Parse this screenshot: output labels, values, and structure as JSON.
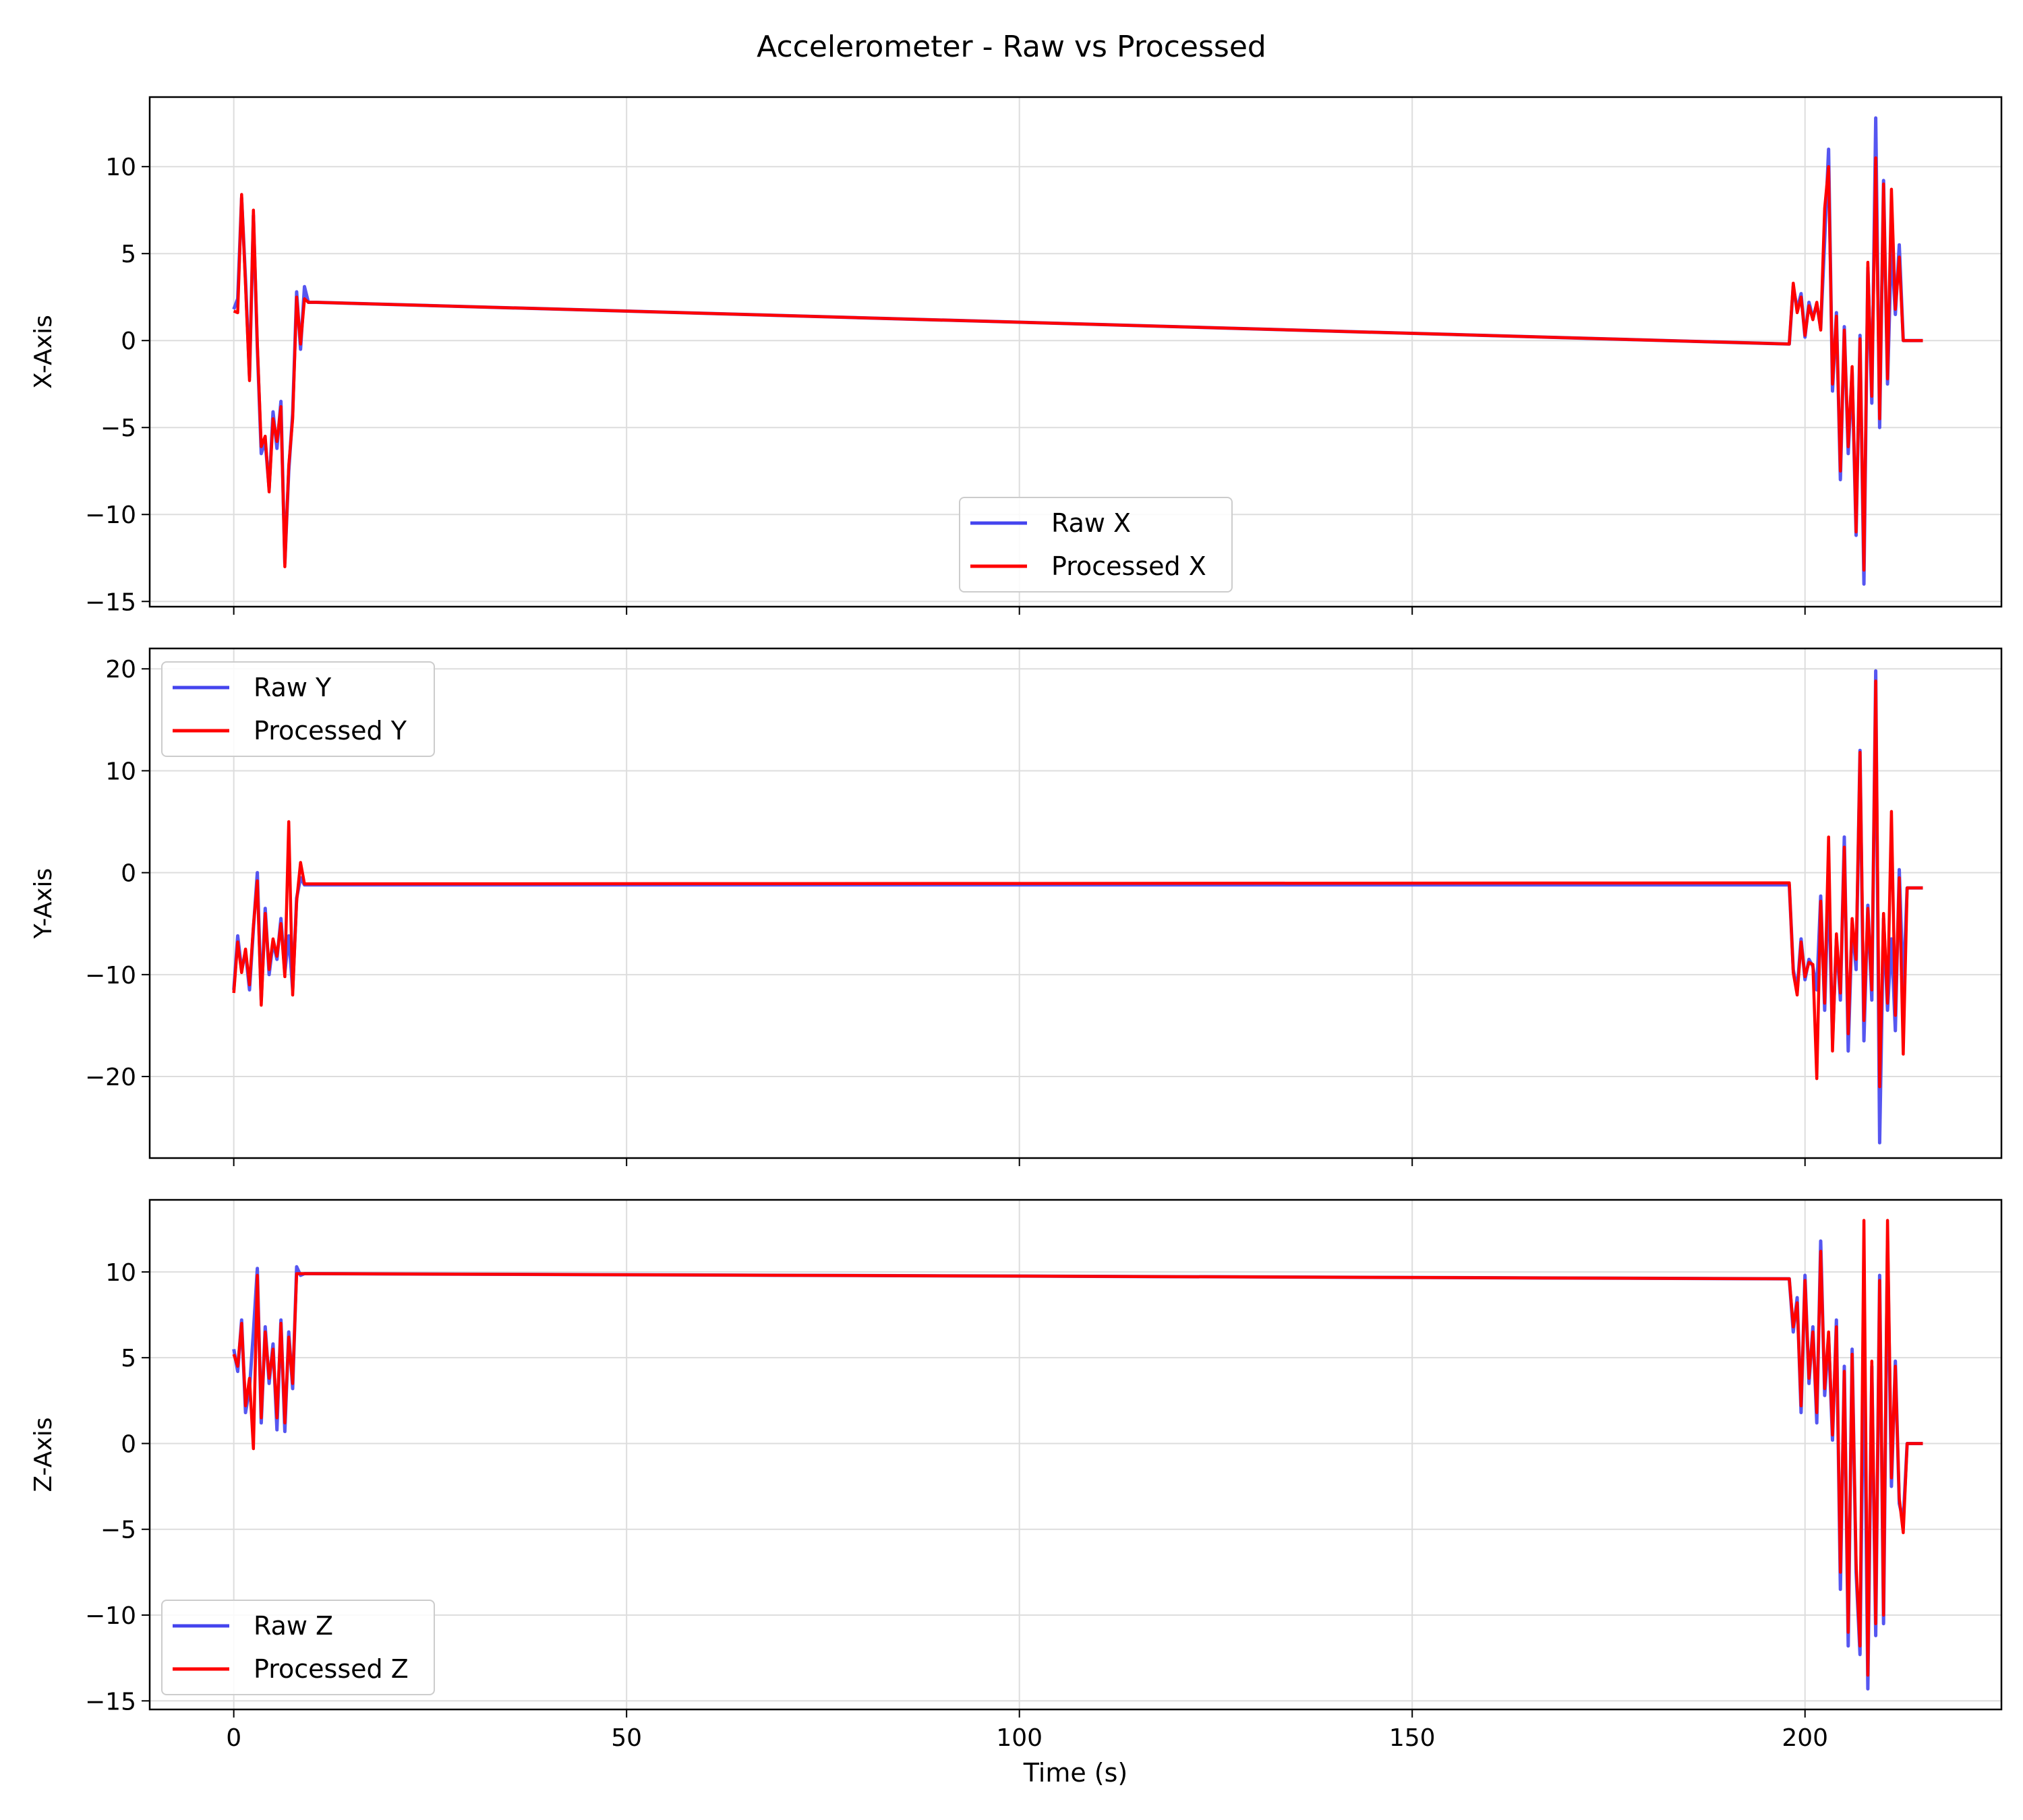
{
  "chart_data": {
    "title": "Accelerometer - Raw vs Processed",
    "type": "line",
    "sharex": true,
    "xlabel": "Time (s)",
    "xlim": [
      -10.7,
      225
    ],
    "xticks": [
      0,
      50,
      100,
      150,
      200
    ],
    "grid": true,
    "colors": {
      "raw": "#4444ee",
      "processed": "#ff0000"
    },
    "panels": [
      {
        "ylabel": "X-Axis",
        "ylim": [
          -15.3,
          14
        ],
        "yticks": [
          -15,
          -10,
          -5,
          0,
          5,
          10
        ],
        "legend_position": "lower center",
        "series": [
          {
            "name": "Raw X",
            "role": "raw",
            "x": [
              0,
              0.5,
              1,
              1.5,
              2,
              2.5,
              3,
              3.5,
              4,
              4.5,
              5,
              5.5,
              6,
              6.5,
              7,
              7.5,
              8,
              8.5,
              9,
              9.5,
              10,
              10.5,
              198,
              198.5,
              199,
              199.5,
              200,
              200.5,
              201,
              201.5,
              202,
              202.5,
              203,
              203.5,
              204,
              204.5,
              205,
              205.5,
              206,
              206.5,
              207,
              207.5,
              208,
              208.5,
              209,
              209.5,
              210,
              210.5,
              211,
              211.5,
              212,
              212.5,
              213,
              213.5,
              214,
              214.5,
              215
            ],
            "y": [
              1.8,
              2.4,
              8.2,
              3.5,
              -2.1,
              7.2,
              -0.4,
              -6.5,
              -5.8,
              -8.5,
              -4.1,
              -6.2,
              -3.5,
              -12.8,
              -7.5,
              -4.2,
              2.8,
              -0.5,
              3.1,
              2.2,
              2.2,
              2.2,
              -0.2,
              3.1,
              1.8,
              2.7,
              0.2,
              2.2,
              1.3,
              2.1,
              0.7,
              5.8,
              11,
              -2.9,
              1.6,
              -8,
              0.8,
              -6.5,
              -1.8,
              -11.2,
              0.3,
              -14,
              4.2,
              -3.6,
              12.8,
              -5,
              9.2,
              -2.5,
              5.5,
              1.5,
              5.5,
              0,
              0,
              0,
              0,
              0,
              0
            ]
          },
          {
            "name": "Processed X",
            "role": "processed",
            "x": [
              0,
              0.5,
              1,
              1.5,
              2,
              2.5,
              3,
              3.5,
              4,
              4.5,
              5,
              5.5,
              6,
              6.5,
              7,
              7.5,
              8,
              8.5,
              9,
              9.5,
              10,
              10.5,
              198,
              198.5,
              199,
              199.5,
              200,
              200.5,
              201,
              201.5,
              202,
              202.5,
              203,
              203.5,
              204,
              204.5,
              205,
              205.5,
              206,
              206.5,
              207,
              207.5,
              208,
              208.5,
              209,
              209.5,
              210,
              210.5,
              211,
              211.5,
              212,
              212.5,
              213,
              213.5,
              214,
              214.5,
              215
            ],
            "y": [
              1.7,
              1.6,
              8.4,
              3.2,
              -2.3,
              7.5,
              -0.2,
              -6.1,
              -5.5,
              -8.7,
              -4.5,
              -5.8,
              -3.8,
              -13,
              -7.2,
              -4.5,
              2.5,
              -0.2,
              2.4,
              2.2,
              2.2,
              2.2,
              -0.2,
              3.3,
              1.6,
              2.5,
              0.3,
              2.0,
              1.2,
              2.2,
              0.6,
              7.6,
              10,
              -2.5,
              1.4,
              -7.5,
              0.6,
              -6.1,
              -1.5,
              -11,
              0.1,
              -13.2,
              4.5,
              -3.2,
              10.5,
              -4.5,
              9.0,
              -2.2,
              8.7,
              1.8,
              4.8,
              0,
              0,
              0,
              0,
              0,
              0
            ]
          }
        ]
      },
      {
        "ylabel": "Y-Axis",
        "ylim": [
          -28,
          22
        ],
        "yticks": [
          -20,
          -10,
          0,
          10,
          20
        ],
        "legend_position": "upper left",
        "series": [
          {
            "name": "Raw Y",
            "role": "raw",
            "x": [
              0,
              0.5,
              1,
              1.5,
              2,
              2.5,
              3,
              3.5,
              4,
              4.5,
              5,
              5.5,
              6,
              6.5,
              7,
              7.5,
              8,
              8.5,
              9,
              9.5,
              10,
              198,
              198.5,
              199,
              199.5,
              200,
              200.5,
              201,
              201.5,
              202,
              202.5,
              203,
              203.5,
              204,
              204.5,
              205,
              205.5,
              206,
              206.5,
              207,
              207.5,
              208,
              208.5,
              209,
              209.5,
              210,
              210.5,
              211,
              211.5,
              212,
              212.5,
              213,
              213.5,
              214,
              214.5,
              215
            ],
            "y": [
              -11.5,
              -6.2,
              -9.5,
              -7.8,
              -11.5,
              -5.5,
              0,
              -12.5,
              -3.5,
              -10,
              -6.8,
              -8.5,
              -4.5,
              -9.8,
              -6.2,
              -11.5,
              -2.5,
              -0.5,
              -1.2,
              -1.2,
              -1.2,
              -1.2,
              -9.5,
              -11.5,
              -6.5,
              -10.5,
              -8.5,
              -9.2,
              -11.5,
              -2.3,
              -13.5,
              -0.5,
              -16.5,
              -6.5,
              -12.5,
              3.5,
              -17.5,
              -5,
              -9.5,
              12,
              -16.5,
              -3.2,
              -12.5,
              19.8,
              -26.5,
              -4.5,
              -13.5,
              -6.5,
              -15.5,
              0.3,
              -11.5,
              -1.5,
              -1.5,
              -1.5,
              -1.5,
              -1.5
            ]
          },
          {
            "name": "Processed Y",
            "role": "processed",
            "x": [
              0,
              0.5,
              1,
              1.5,
              2,
              2.5,
              3,
              3.5,
              4,
              4.5,
              5,
              5.5,
              6,
              6.5,
              7,
              7.5,
              8,
              8.5,
              9,
              9.5,
              10,
              198,
              198.5,
              199,
              199.5,
              200,
              200.5,
              201,
              201.5,
              202,
              202.5,
              203,
              203.5,
              204,
              204.5,
              205,
              205.5,
              206,
              206.5,
              207,
              207.5,
              208,
              208.5,
              209,
              209.5,
              210,
              210.5,
              211,
              211.5,
              212,
              212.5,
              213,
              213.5,
              214,
              214.5,
              215
            ],
            "y": [
              -11.8,
              -6.8,
              -9.8,
              -7.5,
              -11,
              -5.2,
              -0.8,
              -13,
              -4,
              -9.5,
              -6.5,
              -8.2,
              -5,
              -10.2,
              5,
              -12,
              -2.8,
              1,
              -1.1,
              -1.1,
              -1.1,
              -1,
              -9.8,
              -12,
              -6.8,
              -10.2,
              -8.8,
              -9,
              -20.2,
              -2.8,
              -12.8,
              3.5,
              -17.5,
              -6,
              -11.8,
              2.5,
              -15.8,
              -4.5,
              -8.5,
              11.8,
              -14.5,
              -3.5,
              -11.5,
              18.8,
              -21,
              -4,
              -12.8,
              6,
              -14,
              -0.5,
              -17.8,
              -1.5,
              -1.5,
              -1.5,
              -1.5,
              -1.5
            ]
          }
        ]
      },
      {
        "ylabel": "Z-Axis",
        "ylim": [
          -15.5,
          14.2
        ],
        "yticks": [
          -15,
          -10,
          -5,
          0,
          5,
          10
        ],
        "legend_position": "lower left",
        "series": [
          {
            "name": "Raw Z",
            "role": "raw",
            "x": [
              0,
              0.5,
              1,
              1.5,
              2,
              2.5,
              3,
              3.5,
              4,
              4.5,
              5,
              5.5,
              6,
              6.5,
              7,
              7.5,
              8,
              8.5,
              9,
              9.5,
              10,
              198,
              198.5,
              199,
              199.5,
              200,
              200.5,
              201,
              201.5,
              202,
              202.5,
              203,
              203.5,
              204,
              204.5,
              205,
              205.5,
              206,
              206.5,
              207,
              207.5,
              208,
              208.5,
              209,
              209.5,
              210,
              210.5,
              211,
              211.5,
              212,
              212.5,
              213,
              213.5,
              214,
              214.5,
              215
            ],
            "y": [
              5.5,
              4.2,
              7.2,
              1.8,
              3.2,
              6.5,
              10.2,
              1.2,
              6.8,
              3.5,
              5.8,
              0.8,
              7.2,
              0.7,
              6.5,
              3.2,
              10.3,
              9.8,
              9.9,
              9.9,
              9.9,
              9.6,
              6.5,
              8.5,
              1.8,
              9.8,
              3.5,
              6.8,
              1.2,
              11.8,
              2.8,
              6.2,
              0.2,
              7.2,
              -8.5,
              4.5,
              -11.8,
              5.5,
              -7.5,
              -12.3,
              6.8,
              -14.3,
              4.5,
              -11.2,
              9.8,
              -10.5,
              11.8,
              -2.5,
              4.8,
              -3.5,
              -4.5,
              0,
              0,
              0,
              0,
              0
            ]
          },
          {
            "name": "Processed Z",
            "role": "processed",
            "x": [
              0,
              0.5,
              1,
              1.5,
              2,
              2.5,
              3,
              3.5,
              4,
              4.5,
              5,
              5.5,
              6,
              6.5,
              7,
              7.5,
              8,
              8.5,
              9,
              9.5,
              10,
              198,
              198.5,
              199,
              199.5,
              200,
              200.5,
              201,
              201.5,
              202,
              202.5,
              203,
              203.5,
              204,
              204.5,
              205,
              205.5,
              206,
              206.5,
              207,
              207.5,
              208,
              208.5,
              209,
              209.5,
              210,
              210.5,
              211,
              211.5,
              212,
              212.5,
              213,
              213.5,
              214,
              214.5,
              215
            ],
            "y": [
              5.2,
              4.5,
              7,
              2.2,
              3.8,
              -0.3,
              9.8,
              1.5,
              6.5,
              3.8,
              5.5,
              1.5,
              7.0,
              1.2,
              6.2,
              3.5,
              9.9,
              9.9,
              9.9,
              9.9,
              9.9,
              9.6,
              6.8,
              8.2,
              2.2,
              9.5,
              3.8,
              6.5,
              1.8,
              11.2,
              3.2,
              6.5,
              0.5,
              6.8,
              -7.5,
              4.2,
              -11,
              5.2,
              -7,
              -11.8,
              13,
              -13.5,
              4.8,
              -10.5,
              9.5,
              -10,
              13,
              -2,
              4.5,
              -3.2,
              -5.2,
              0,
              0,
              0,
              0,
              0
            ]
          }
        ]
      }
    ]
  }
}
